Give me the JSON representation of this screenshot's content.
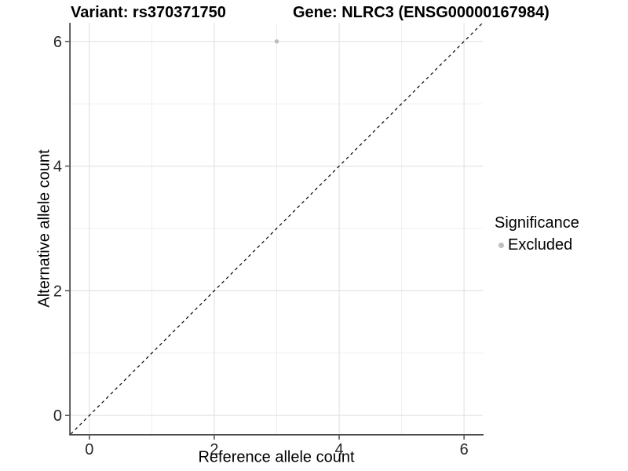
{
  "titles": {
    "variant": "Variant: rs370371750",
    "gene": "Gene: NLRC3 (ENSG00000167984)"
  },
  "axes": {
    "x_label": "Reference allele count",
    "y_label": "Alternative allele count"
  },
  "legend": {
    "title": "Significance",
    "items": [
      {
        "label": "Excluded",
        "color": "#bebebe"
      }
    ]
  },
  "colors": {
    "background": "#ffffff",
    "grid_major": "#e3e3e3",
    "grid_minor": "#efefef",
    "axis_line": "#4d4d4d",
    "tick_text": "#262626",
    "identity_line": "#000000",
    "point": "#bebebe"
  },
  "chart_data": {
    "type": "scatter",
    "title": "Variant: rs370371750 / Gene: NLRC3 (ENSG00000167984)",
    "xlabel": "Reference allele count",
    "ylabel": "Alternative allele count",
    "xlim": [
      -0.3,
      6.3
    ],
    "ylim": [
      -0.3,
      6.3
    ],
    "x_ticks": [
      0,
      2,
      4,
      6
    ],
    "y_ticks": [
      0,
      2,
      4,
      6
    ],
    "x_minor_ticks": [
      1,
      3,
      5
    ],
    "y_minor_ticks": [
      1,
      3,
      5
    ],
    "grid": true,
    "legend_position": "right",
    "series": [
      {
        "name": "Excluded",
        "color": "#bebebe",
        "points": [
          {
            "x": 3,
            "y": 6
          }
        ]
      }
    ],
    "reference_line": {
      "type": "identity",
      "slope": 1,
      "intercept": 0,
      "style": "dashed",
      "color": "#000000"
    }
  }
}
